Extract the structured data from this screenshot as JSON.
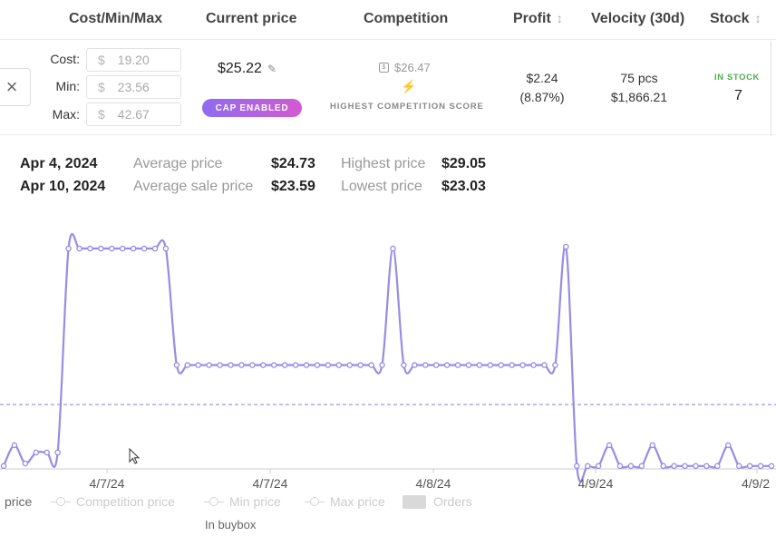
{
  "header": {
    "cost_min_max": "Cost/Min/Max",
    "current_price": "Current price",
    "competition": "Competition",
    "profit": "Profit",
    "velocity": "Velocity (30d)",
    "stock": "Stock",
    "sort_glyph": "↕"
  },
  "row": {
    "close_glyph": "×",
    "cost_label": "Cost:",
    "min_label": "Min:",
    "max_label": "Max:",
    "currency_symbol": "$",
    "cost_value": "19.20",
    "min_value": "23.56",
    "max_value": "42.67",
    "current_price": "$25.22",
    "edit_glyph": "✎",
    "cap_badge": "CAP ENABLED",
    "competition_icon_glyph": "$",
    "competition_price": "$26.47",
    "bolt_glyph": "⚡",
    "competition_score_label": "HIGHEST COMPETITION SCORE",
    "profit_value": "$2.24",
    "profit_percent": "(8.87%)",
    "velocity_pcs": "75 pcs",
    "velocity_amount": "$1,866.21",
    "stock_status": "IN STOCK",
    "stock_count": "7"
  },
  "summary": {
    "start_date": "Apr 4, 2024",
    "end_date": "Apr 10, 2024",
    "avg_price_label": "Average price",
    "avg_price_value": "$24.73",
    "avg_sale_label": "Average sale price",
    "avg_sale_value": "$23.59",
    "highest_label": "Highest price",
    "highest_value": "$29.05",
    "lowest_label": "Lowest price",
    "lowest_value": "$23.03"
  },
  "chart_data": {
    "type": "line",
    "color": "#9b8ae6",
    "x_tick_labels": [
      "4/7/24",
      "4/7/24",
      "4/8/24",
      "4/9/24",
      "4/9/2"
    ],
    "grid": false,
    "reference_line": "dashed horizontal",
    "series": [
      {
        "values": [
          23.03,
          23.6,
          23.1,
          23.4,
          23.4,
          23.4,
          29.0,
          29.0,
          29.0,
          29.0,
          29.0,
          29.0,
          29.0,
          29.0,
          29.0,
          29.0,
          25.8,
          25.8,
          25.8,
          25.8,
          25.8,
          25.8,
          25.8,
          25.8,
          25.8,
          25.8,
          25.8,
          25.8,
          25.8,
          25.8,
          25.8,
          25.8,
          25.8,
          25.8,
          25.8,
          25.8,
          29.0,
          25.8,
          25.8,
          25.8,
          25.8,
          25.8,
          25.8,
          25.8,
          25.8,
          25.8,
          25.8,
          25.8,
          25.8,
          25.8,
          25.8,
          25.8,
          29.05,
          23.03,
          23.03,
          23.03,
          23.6,
          23.03,
          23.03,
          23.03,
          23.6,
          23.03,
          23.03,
          23.03,
          23.03,
          23.03,
          23.03,
          23.6,
          23.03,
          23.03,
          23.03,
          23.03
        ]
      }
    ]
  },
  "legend": {
    "price": "price",
    "competition_price": "Competition price",
    "min_price": "Min price",
    "max_price": "Max price",
    "orders": "Orders",
    "in_buybox": "In buybox"
  }
}
